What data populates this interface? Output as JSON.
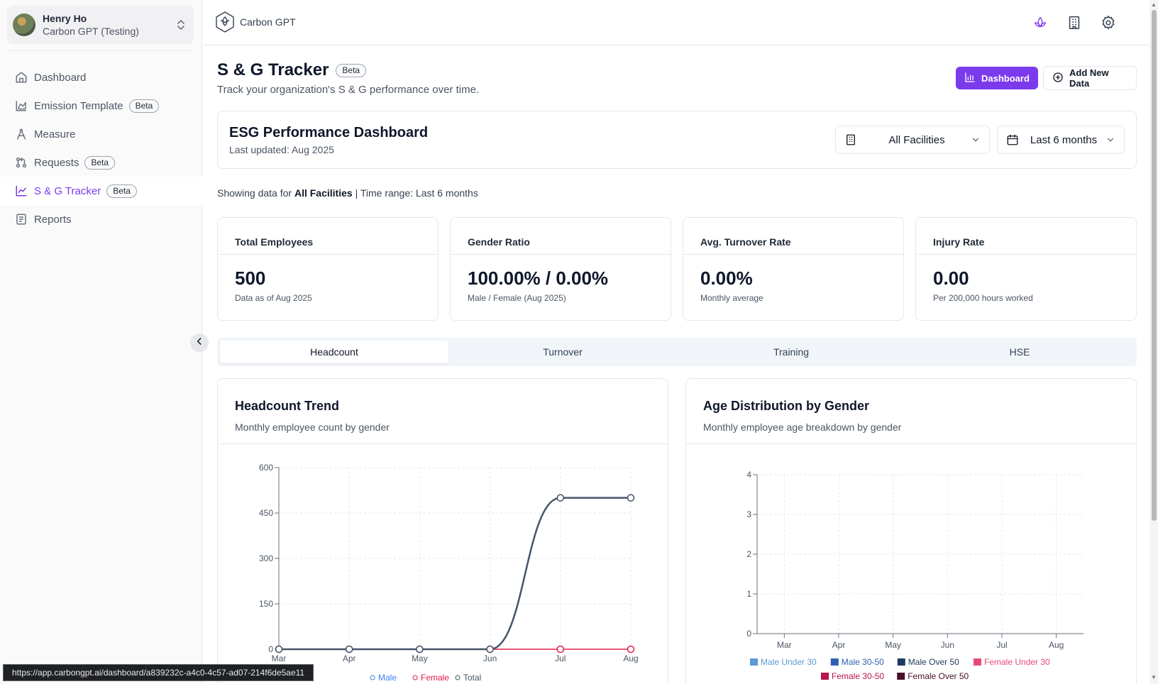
{
  "user": {
    "name": "Henry Ho",
    "org": "Carbon GPT (Testing)"
  },
  "sidebar": {
    "items": [
      {
        "label": "Dashboard",
        "badge": ""
      },
      {
        "label": "Emission Template",
        "badge": "Beta"
      },
      {
        "label": "Measure",
        "badge": ""
      },
      {
        "label": "Requests",
        "badge": "Beta"
      },
      {
        "label": "S & G Tracker",
        "badge": "Beta"
      },
      {
        "label": "Reports",
        "badge": ""
      }
    ]
  },
  "brand": {
    "name": "Carbon GPT"
  },
  "page": {
    "title": "S & G Tracker",
    "badge": "Beta",
    "subtitle": "Track your organization's S & G performance over time.",
    "dashboard_button": "Dashboard",
    "add_button": "Add New Data"
  },
  "dashboard": {
    "title": "ESG Performance Dashboard",
    "updated": "Last updated: Aug 2025",
    "facility_select": "All Facilities",
    "time_select": "Last 6 months"
  },
  "showing": {
    "prefix": "Showing data for",
    "facility": "All Facilities",
    "range": "| Time range: Last 6 months"
  },
  "kpis": [
    {
      "label": "Total Employees",
      "value": "500",
      "note": "Data as of Aug 2025"
    },
    {
      "label": "Gender Ratio",
      "value": "100.00% / 0.00%",
      "note": "Male / Female (Aug 2025)"
    },
    {
      "label": "Avg. Turnover Rate",
      "value": "0.00%",
      "note": "Monthly average"
    },
    {
      "label": "Injury Rate",
      "value": "0.00",
      "note": "Per 200,000 hours worked"
    }
  ],
  "tabs": [
    "Headcount",
    "Turnover",
    "Training",
    "HSE"
  ],
  "colors": {
    "accent": "#7c3aed",
    "total": "#475569",
    "female": "#e11d48",
    "male": "#3b82f6"
  },
  "chart_data": [
    {
      "type": "line",
      "title": "Headcount Trend",
      "subtitle": "Monthly employee count by gender",
      "x": [
        "Mar",
        "Apr",
        "May",
        "Jun",
        "Jul",
        "Aug"
      ],
      "ylim": [
        0,
        600
      ],
      "yticks": [
        "0",
        "150",
        "300",
        "450",
        "600"
      ],
      "grid": true,
      "series": [
        {
          "name": "Male",
          "values": [
            0,
            0,
            0,
            0,
            500,
            500
          ]
        },
        {
          "name": "Female",
          "values": [
            0,
            0,
            0,
            0,
            0,
            0
          ]
        },
        {
          "name": "Total",
          "values": [
            0,
            0,
            0,
            0,
            500,
            500
          ]
        }
      ]
    },
    {
      "type": "bar",
      "title": "Age Distribution by Gender",
      "subtitle": "Monthly employee age breakdown by gender",
      "categories": [
        "Mar",
        "Apr",
        "May",
        "Jun",
        "Jul",
        "Aug"
      ],
      "ylim": [
        0,
        4
      ],
      "yticks": [
        "0",
        "1",
        "2",
        "3",
        "4"
      ],
      "grid": true,
      "series": [
        {
          "name": "Male Under 30",
          "color": "#5b9bd5",
          "values": [
            0,
            0,
            0,
            0,
            0,
            0
          ]
        },
        {
          "name": "Male 30-50",
          "color": "#2f5fb3",
          "values": [
            0,
            0,
            0,
            0,
            0,
            0
          ]
        },
        {
          "name": "Male Over 50",
          "color": "#1e3a5f",
          "values": [
            0,
            0,
            0,
            0,
            0,
            0
          ]
        },
        {
          "name": "Female Under 30",
          "color": "#e84a7a",
          "values": [
            0,
            0,
            0,
            0,
            0,
            0
          ]
        },
        {
          "name": "Female 30-50",
          "color": "#b5174f",
          "values": [
            0,
            0,
            0,
            0,
            0,
            0
          ]
        },
        {
          "name": "Female Over 50",
          "color": "#4a1028",
          "values": [
            0,
            0,
            0,
            0,
            0,
            0
          ]
        }
      ]
    }
  ],
  "status_url": "https://app.carbongpt.ai/dashboard/a839232c-a4c0-4c57-ad07-214f6de5ae11"
}
